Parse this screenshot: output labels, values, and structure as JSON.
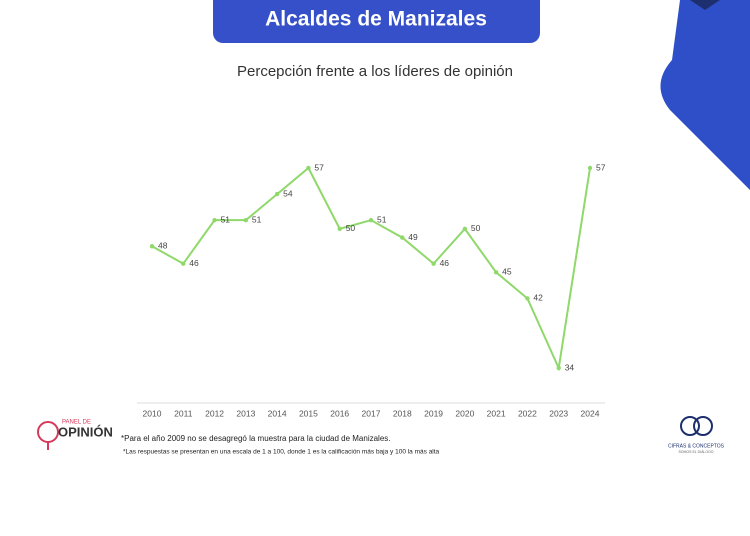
{
  "chart_data": {
    "type": "line",
    "title": "Alcaldes de Manizales",
    "subtitle": "Percepción frente a los líderes de opinión",
    "categories": [
      "2010",
      "2011",
      "2012",
      "2013",
      "2014",
      "2015",
      "2016",
      "2017",
      "2018",
      "2019",
      "2020",
      "2021",
      "2022",
      "2023",
      "2024"
    ],
    "series": [
      {
        "name": "Percepción",
        "color": "#8fd86a",
        "values": [
          48,
          46,
          51,
          51,
          54,
          57,
          50,
          51,
          49,
          46,
          50,
          45,
          42,
          34,
          57
        ]
      }
    ],
    "notes": [
      "*Para el año 2009 no se desagregó la muestra para la ciudad de Manizales.",
      "*Las respuestas se presentan en una escala de 1 a 100, donde 1 es la calificación más baja y 100 la más alta"
    ],
    "logos": {
      "left_small": "PANEL DE",
      "left": "OPINIÓN",
      "right": "CIFRAS & CONCEPTOS",
      "right_small": "SOMOS EL DIÁLOGO"
    }
  }
}
